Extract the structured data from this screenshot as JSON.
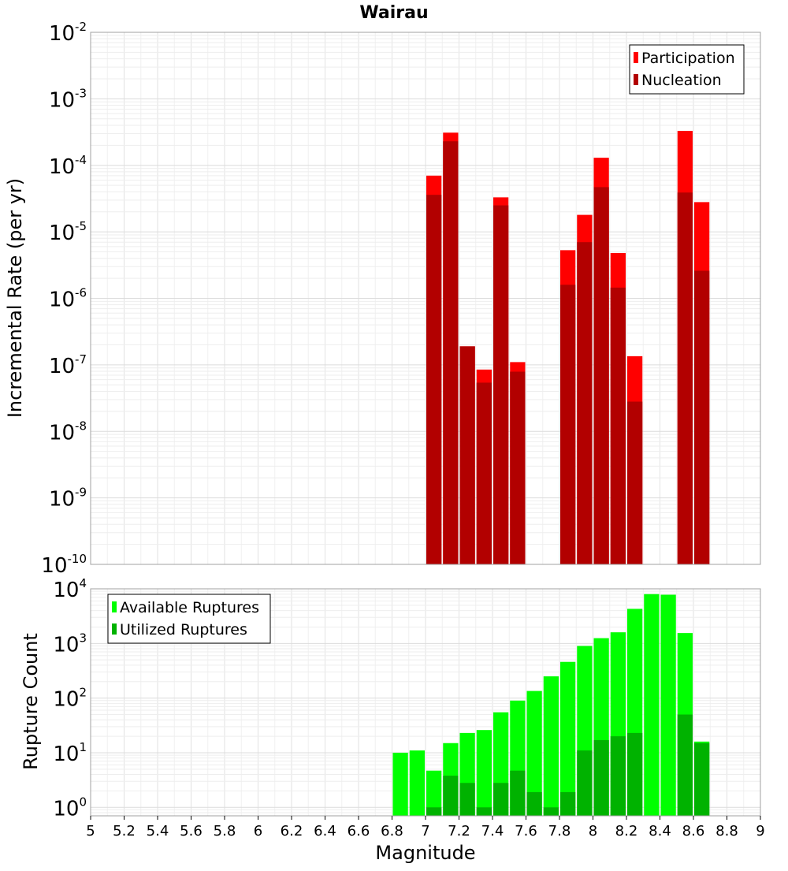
{
  "chart_data": {
    "title": "Wairau",
    "xlabel": "Magnitude",
    "xlim": [
      5,
      9
    ],
    "x_ticks": [
      "5",
      "5.2",
      "5.4",
      "5.6",
      "5.8",
      "6",
      "6.2",
      "6.4",
      "6.6",
      "6.8",
      "7",
      "7.2",
      "7.4",
      "7.6",
      "7.8",
      "8",
      "8.2",
      "8.4",
      "8.6",
      "8.8",
      "9"
    ],
    "panels": [
      {
        "type": "bar",
        "ylabel": "Incremental Rate (per yr)",
        "yscale": "log",
        "ylim": [
          1e-10,
          0.01
        ],
        "y_ticks": [
          {
            "base": "10",
            "exp": "-10"
          },
          {
            "base": "10",
            "exp": "-9"
          },
          {
            "base": "10",
            "exp": "-8"
          },
          {
            "base": "10",
            "exp": "-7"
          },
          {
            "base": "10",
            "exp": "-6"
          },
          {
            "base": "10",
            "exp": "-5"
          },
          {
            "base": "10",
            "exp": "-4"
          },
          {
            "base": "10",
            "exp": "-3"
          },
          {
            "base": "10",
            "exp": "-2"
          }
        ],
        "grid": true,
        "legend_position": "top-right",
        "x": [
          7.05,
          7.15,
          7.25,
          7.35,
          7.45,
          7.55,
          7.85,
          7.95,
          8.05,
          8.15,
          8.25,
          8.55,
          8.65
        ],
        "series": [
          {
            "name": "Participation",
            "color": "#ff0000",
            "values": [
              7e-05,
              0.00031,
              1.9e-07,
              8.5e-08,
              3.3e-05,
              1.1e-07,
              5.3e-06,
              1.8e-05,
              0.00013,
              4.8e-06,
              1.35e-07,
              0.00033,
              2.8e-05
            ]
          },
          {
            "name": "Nucleation",
            "color": "#b20000",
            "values": [
              3.6e-05,
              0.00023,
              1.9e-07,
              5.4e-08,
              2.5e-05,
              7.9e-08,
              1.6e-06,
              7e-06,
              4.7e-05,
              1.45e-06,
              2.8e-08,
              3.9e-05,
              2.6e-06
            ]
          }
        ]
      },
      {
        "type": "bar",
        "ylabel": "Rupture Count",
        "yscale": "log",
        "ylim": [
          0.7,
          10000
        ],
        "y_ticks": [
          {
            "base": "10",
            "exp": "0"
          },
          {
            "base": "10",
            "exp": "1"
          },
          {
            "base": "10",
            "exp": "2"
          },
          {
            "base": "10",
            "exp": "3"
          },
          {
            "base": "10",
            "exp": "4"
          }
        ],
        "grid": true,
        "legend_position": "top-left",
        "x": [
          6.85,
          6.95,
          7.05,
          7.15,
          7.25,
          7.35,
          7.45,
          7.55,
          7.65,
          7.75,
          7.85,
          7.95,
          8.05,
          8.15,
          8.25,
          8.35,
          8.45,
          8.55,
          8.65
        ],
        "series": [
          {
            "name": "Available Ruptures",
            "color": "#00ff00",
            "values": [
              10,
              11,
              4.7,
              15,
              23,
              26,
              55,
              90,
              135,
              250,
              460,
              900,
              1250,
              1600,
              4300,
              8000,
              7800,
              1550,
              16
            ]
          },
          {
            "name": "Utilized Ruptures",
            "color": "#00b200",
            "values": [
              null,
              null,
              1,
              3.8,
              2.8,
              1,
              2.8,
              4.7,
              1.9,
              1,
              1.9,
              11,
              17,
              20,
              23,
              null,
              null,
              50,
              15
            ]
          }
        ]
      }
    ]
  }
}
